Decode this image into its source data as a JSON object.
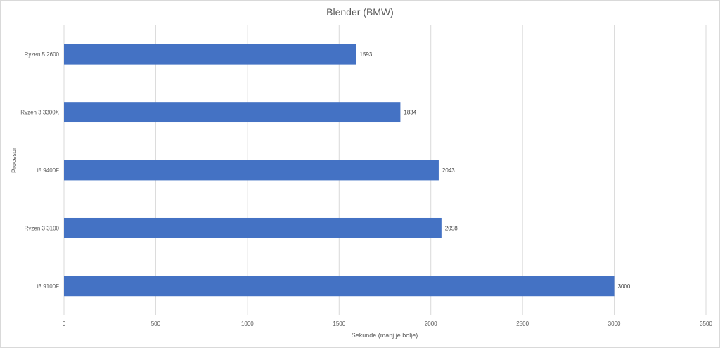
{
  "chart_data": {
    "type": "bar",
    "orientation": "horizontal",
    "title": "Blender (BMW)",
    "xlabel": "Sekunde (manj je bolje)",
    "ylabel": "Procesor",
    "categories": [
      "Ryzen 5 2600",
      "Ryzen 3 3300X",
      "i5 9400F",
      "Ryzen 3 3100",
      "i3 9100F"
    ],
    "values": [
      1593,
      1834,
      2043,
      2058,
      3000
    ],
    "data_labels": [
      "1593",
      "1834",
      "2043",
      "2058",
      "3000"
    ],
    "xlim": [
      0,
      3500
    ],
    "x_ticks": [
      0,
      500,
      1000,
      1500,
      2000,
      2500,
      3000,
      3500
    ],
    "x_tick_labels": [
      "0",
      "500",
      "1000",
      "1500",
      "2000",
      "2500",
      "3000",
      "3500"
    ],
    "bar_color": "#4472c4",
    "grid": true,
    "legend": "none"
  }
}
